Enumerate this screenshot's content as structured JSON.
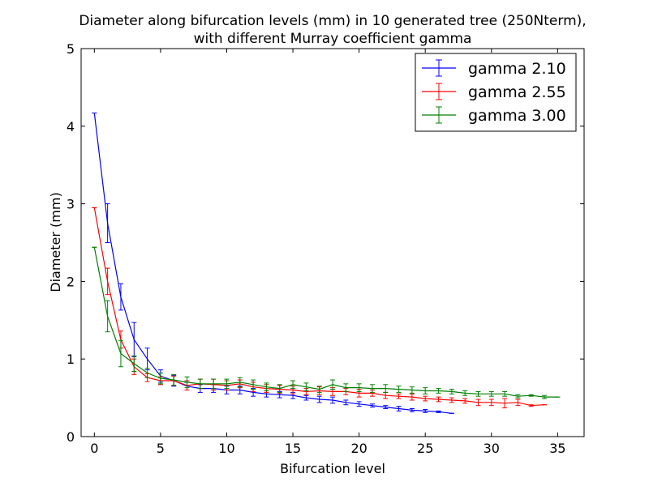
{
  "chart_data": {
    "type": "line",
    "title": "Diameter along bifurcation levels (mm) in 10 generated tree (250Nterm),",
    "subtitle": "with different Murray coefficient gamma",
    "xlabel": "Bifurcation level",
    "ylabel": "Diameter (mm)",
    "xlim": [
      -1,
      37
    ],
    "ylim": [
      0,
      5
    ],
    "xticks": [
      0,
      5,
      10,
      15,
      20,
      25,
      30,
      35
    ],
    "yticks": [
      0,
      1,
      2,
      3,
      4,
      5
    ],
    "grid": false,
    "legend_position": "top-right",
    "error_bars": true,
    "series": [
      {
        "name": "gamma 2.10",
        "color": "#0000ff",
        "x": [
          0,
          1,
          2,
          3,
          4,
          5,
          6,
          7,
          8,
          9,
          10,
          11,
          12,
          13,
          14,
          15,
          16,
          17,
          18,
          19,
          20,
          21,
          22,
          23,
          24,
          25,
          26,
          27
        ],
        "y": [
          4.17,
          2.75,
          1.8,
          1.25,
          1.0,
          0.78,
          0.72,
          0.65,
          0.62,
          0.62,
          0.6,
          0.6,
          0.57,
          0.55,
          0.54,
          0.53,
          0.5,
          0.48,
          0.47,
          0.44,
          0.42,
          0.4,
          0.38,
          0.36,
          0.34,
          0.33,
          0.32,
          0.3
        ],
        "err": [
          0.0,
          0.25,
          0.17,
          0.22,
          0.14,
          0.08,
          0.07,
          0.05,
          0.05,
          0.05,
          0.05,
          0.05,
          0.05,
          0.04,
          0.04,
          0.04,
          0.03,
          0.04,
          0.04,
          0.03,
          0.03,
          0.02,
          0.02,
          0.03,
          0.02,
          0.02,
          0.01,
          0.0
        ]
      },
      {
        "name": "gamma 2.55",
        "color": "#ff0000",
        "x": [
          0,
          1,
          2,
          3,
          4,
          5,
          6,
          7,
          8,
          9,
          10,
          11,
          12,
          13,
          14,
          15,
          16,
          17,
          18,
          19,
          20,
          21,
          22,
          23,
          24,
          25,
          26,
          27,
          28,
          29,
          30,
          31,
          32,
          33,
          34
        ],
        "y": [
          2.95,
          2.0,
          1.25,
          0.9,
          0.76,
          0.72,
          0.72,
          0.66,
          0.68,
          0.67,
          0.66,
          0.68,
          0.64,
          0.62,
          0.61,
          0.6,
          0.58,
          0.59,
          0.58,
          0.58,
          0.56,
          0.56,
          0.53,
          0.52,
          0.51,
          0.49,
          0.48,
          0.47,
          0.46,
          0.44,
          0.44,
          0.43,
          0.44,
          0.4,
          0.41
        ],
        "err": [
          0.0,
          0.17,
          0.11,
          0.1,
          0.05,
          0.05,
          0.06,
          0.06,
          0.06,
          0.07,
          0.06,
          0.05,
          0.06,
          0.05,
          0.05,
          0.05,
          0.04,
          0.05,
          0.05,
          0.04,
          0.05,
          0.04,
          0.04,
          0.03,
          0.04,
          0.03,
          0.03,
          0.03,
          0.03,
          0.04,
          0.04,
          0.06,
          0.04,
          0.01,
          0.0
        ]
      },
      {
        "name": "gamma 3.00",
        "color": "#008000",
        "x": [
          0,
          1,
          2,
          3,
          4,
          5,
          6,
          7,
          8,
          9,
          10,
          11,
          12,
          13,
          14,
          15,
          16,
          17,
          18,
          19,
          20,
          21,
          22,
          23,
          24,
          25,
          26,
          27,
          28,
          29,
          30,
          31,
          32,
          33,
          34,
          35
        ],
        "y": [
          2.44,
          1.55,
          1.07,
          0.94,
          0.82,
          0.75,
          0.73,
          0.7,
          0.68,
          0.68,
          0.68,
          0.7,
          0.67,
          0.64,
          0.62,
          0.67,
          0.64,
          0.61,
          0.67,
          0.63,
          0.63,
          0.62,
          0.62,
          0.61,
          0.6,
          0.59,
          0.59,
          0.58,
          0.56,
          0.55,
          0.55,
          0.55,
          0.52,
          0.53,
          0.51,
          0.51
        ],
        "err": [
          0.0,
          0.2,
          0.17,
          0.1,
          0.06,
          0.07,
          0.07,
          0.07,
          0.06,
          0.06,
          0.06,
          0.06,
          0.06,
          0.05,
          0.05,
          0.05,
          0.05,
          0.04,
          0.06,
          0.05,
          0.05,
          0.05,
          0.05,
          0.04,
          0.04,
          0.04,
          0.03,
          0.03,
          0.03,
          0.03,
          0.03,
          0.03,
          0.02,
          0.01,
          0.02,
          0.0
        ]
      }
    ]
  }
}
